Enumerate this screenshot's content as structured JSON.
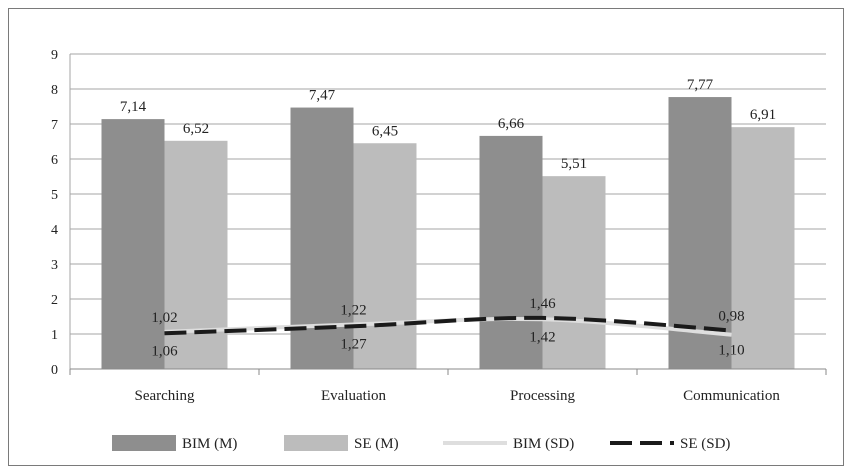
{
  "chart_data": {
    "type": "bar",
    "categories": [
      "Searching",
      "Evaluation",
      "Processing",
      "Communication"
    ],
    "series": [
      {
        "name": "BIM (M)",
        "kind": "bar",
        "color": "#8e8e8e",
        "values": [
          7.14,
          7.47,
          6.66,
          7.77
        ],
        "labels": [
          "7,14",
          "7,47",
          "6,66",
          "7,77"
        ]
      },
      {
        "name": "SE (M)",
        "kind": "bar",
        "color": "#bcbcbc",
        "values": [
          6.52,
          6.45,
          5.51,
          6.91
        ],
        "labels": [
          "6,52",
          "6,45",
          "5,51",
          "6,91"
        ]
      },
      {
        "name": "BIM (SD)",
        "kind": "line",
        "color": "#dedede",
        "style": "solid",
        "values": [
          1.06,
          1.27,
          1.42,
          0.98
        ],
        "labels": [
          "1,06",
          "1,27",
          "1,42",
          "0,98"
        ]
      },
      {
        "name": "SE (SD)",
        "kind": "line",
        "color": "#1a1a1a",
        "style": "dashed",
        "values": [
          1.02,
          1.22,
          1.46,
          1.1
        ],
        "labels": [
          "1,02",
          "1,22",
          "1,46",
          "1,10"
        ]
      }
    ],
    "ylim": [
      0,
      9
    ],
    "yticks": [
      "0",
      "1",
      "2",
      "3",
      "4",
      "5",
      "6",
      "7",
      "8",
      "9"
    ],
    "grid": true,
    "legend_position": "bottom"
  }
}
